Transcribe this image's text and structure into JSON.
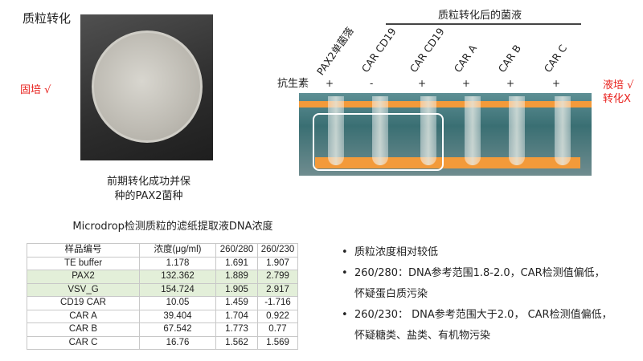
{
  "title": "质粒转化",
  "left_photo": {
    "label": "固培 √",
    "caption_line1": "前期转化成功并保",
    "caption_line2": "种的PAX2菌种"
  },
  "table": {
    "title": "Microdrop检测质粒的滤纸提取液DNA浓度",
    "headers": [
      "样品编号",
      "浓度(μg/ml)",
      "260/280",
      "260/230"
    ],
    "rows": [
      [
        "TE buffer",
        "1.178",
        "1.691",
        "1.907"
      ],
      [
        "PAX2",
        "132.362",
        "1.889",
        "2.799"
      ],
      [
        "VSV_G",
        "154.724",
        "1.905",
        "2.917"
      ],
      [
        "CD19 CAR",
        "10.05",
        "1.459",
        "-1.716"
      ],
      [
        "CAR A",
        "39.404",
        "1.704",
        "0.922"
      ],
      [
        "CAR B",
        "67.542",
        "1.773",
        "0.77"
      ],
      [
        "CAR C",
        "16.76",
        "1.562",
        "1.569"
      ]
    ],
    "highlight_color": "#e3efd9"
  },
  "right_photo": {
    "group_title": "质粒转化后的菌液",
    "antibiotic_label": "抗生素",
    "tubes": [
      {
        "name": "PAX2单菌落",
        "antibiotic": "+"
      },
      {
        "name": "CAR CD19",
        "antibiotic": "-"
      },
      {
        "name": "CAR CD19",
        "antibiotic": "+"
      },
      {
        "name": "CAR A",
        "antibiotic": "+"
      },
      {
        "name": "CAR B",
        "antibiotic": "+"
      },
      {
        "name": "CAR C",
        "antibiotic": "+"
      }
    ],
    "result_line1": "液培 √",
    "result_line2": "转化X"
  },
  "bullets": [
    {
      "line1": "质粒浓度相对较低"
    },
    {
      "line1": "260/280：DNA参考范围1.8-2.0，CAR检测值偏低，",
      "line2": "怀疑蛋白质污染"
    },
    {
      "line1": "260/230： DNA参考范围大于2.0， CAR检测值偏低，",
      "line2": "怀疑糖类、盐类、有机物污染"
    }
  ],
  "accent_color": "#e8201c"
}
